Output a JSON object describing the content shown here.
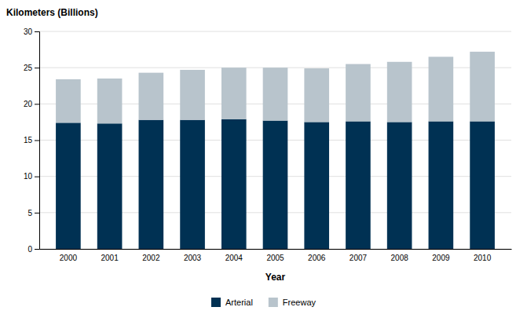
{
  "chart_data": {
    "type": "bar",
    "stacked": true,
    "categories": [
      "2000",
      "2001",
      "2002",
      "2003",
      "2004",
      "2005",
      "2006",
      "2007",
      "2008",
      "2009",
      "2010"
    ],
    "series": [
      {
        "name": "Arterial",
        "color": "#003153",
        "values": [
          17.4,
          17.3,
          17.8,
          17.8,
          17.9,
          17.7,
          17.5,
          17.6,
          17.5,
          17.6,
          17.6
        ]
      },
      {
        "name": "Freeway",
        "color": "#b8c4cc",
        "values": [
          6.0,
          6.2,
          6.5,
          6.9,
          7.1,
          7.3,
          7.4,
          7.9,
          8.3,
          8.9,
          9.6
        ]
      }
    ],
    "xlabel": "Year",
    "ylabel": "Kilometers (Billions)",
    "ylim": [
      0,
      30
    ],
    "yticks": [
      0,
      5,
      10,
      15,
      20,
      25,
      30
    ],
    "grid": true,
    "legend": "bottom"
  }
}
